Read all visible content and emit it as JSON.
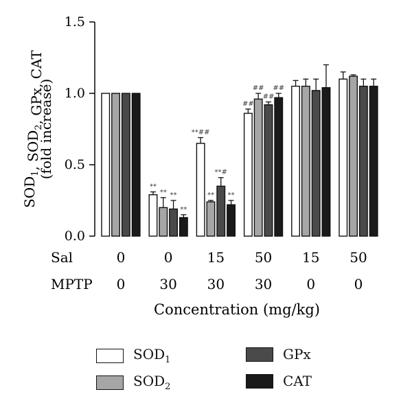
{
  "chart_data": {
    "type": "bar",
    "ylabel_line1": "SOD1, SOD2, GPx, CAT",
    "ylabel_line2": "(fold increase)",
    "xlabel": "Concentration (mg/kg)",
    "ylim": [
      0,
      1.5
    ],
    "yticks": [
      "0.0",
      "0.5",
      "1.0",
      "1.5"
    ],
    "ytick_values": [
      0,
      0.5,
      1.0,
      1.5
    ],
    "row_labels": [
      "Sal",
      "MPTP"
    ],
    "groups": [
      {
        "sal": "0",
        "mptp": "0"
      },
      {
        "sal": "0",
        "mptp": "30"
      },
      {
        "sal": "15",
        "mptp": "30"
      },
      {
        "sal": "50",
        "mptp": "30"
      },
      {
        "sal": "15",
        "mptp": "0"
      },
      {
        "sal": "50",
        "mptp": "0"
      }
    ],
    "series": [
      {
        "name": "SOD1",
        "color": "#ffffff",
        "values": [
          1.0,
          0.29,
          0.65,
          0.86,
          1.05,
          1.1
        ],
        "errors": [
          0,
          0.02,
          0.04,
          0.03,
          0.04,
          0.05
        ],
        "marks": [
          "",
          "**",
          "**##",
          "##",
          "",
          ""
        ]
      },
      {
        "name": "SOD2",
        "color": "#a6a6a6",
        "values": [
          1.0,
          0.2,
          0.24,
          0.96,
          1.05,
          1.12
        ],
        "errors": [
          0,
          0.07,
          0.01,
          0.04,
          0.05,
          0.01
        ],
        "marks": [
          "",
          "**",
          "**",
          "##",
          "",
          ""
        ]
      },
      {
        "name": "GPx",
        "color": "#4a4a4a",
        "values": [
          1.0,
          0.19,
          0.35,
          0.92,
          1.02,
          1.05
        ],
        "errors": [
          0,
          0.06,
          0.06,
          0.02,
          0.08,
          0.05
        ],
        "marks": [
          "",
          "**",
          "**#",
          "##",
          "",
          ""
        ]
      },
      {
        "name": "CAT",
        "color": "#1a1a1a",
        "values": [
          1.0,
          0.13,
          0.22,
          0.97,
          1.04,
          1.05
        ],
        "errors": [
          0,
          0.02,
          0.03,
          0.03,
          0.16,
          0.05
        ],
        "marks": [
          "",
          "**",
          "**",
          "##",
          "",
          ""
        ]
      }
    ]
  },
  "legend": [
    {
      "base": "SOD",
      "sub": "1",
      "color": "#ffffff"
    },
    {
      "base": "GPx",
      "sub": "",
      "color": "#4a4a4a"
    },
    {
      "base": "SOD",
      "sub": "2",
      "color": "#a6a6a6"
    },
    {
      "base": "CAT",
      "sub": "",
      "color": "#1a1a1a"
    }
  ]
}
